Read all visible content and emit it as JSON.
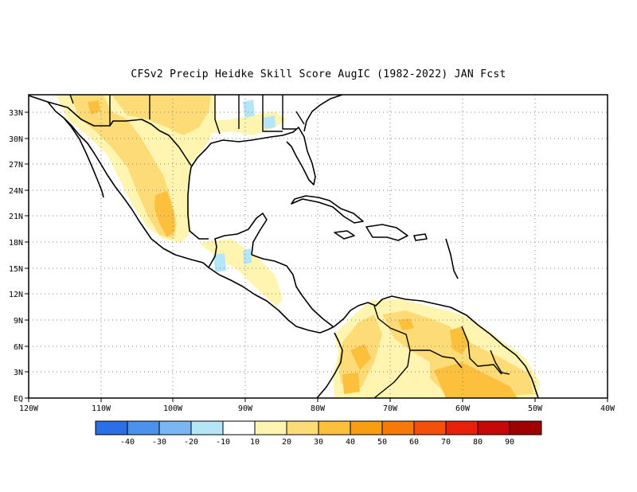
{
  "title": "CFSv2 Precip Heidke Skill Score AugIC (1982-2022) JAN Fcst",
  "lat_labels": [
    "33N",
    "30N",
    "27N",
    "24N",
    "21N",
    "18N",
    "15N",
    "12N",
    "9N",
    "6N",
    "3N",
    "EQ"
  ],
  "lon_labels": [
    "120W",
    "110W",
    "100W",
    "90W",
    "80W",
    "70W",
    "60W",
    "50W",
    "40W"
  ],
  "colorbar": {
    "colors": [
      "#2a6fe8",
      "#4a92ee",
      "#7ab6f4",
      "#b4e6f8",
      "#ffffff",
      "#fff4b0",
      "#fddc78",
      "#fcc03c",
      "#f89e10",
      "#f77a08",
      "#f5500a",
      "#e8200a",
      "#c80808",
      "#a00000"
    ],
    "labels": [
      "-40",
      "-30",
      "-20",
      "-10",
      "10",
      "20",
      "30",
      "40",
      "50",
      "60",
      "70",
      "80",
      "90"
    ]
  },
  "colors": {
    "yellow_light": "#fff4b0",
    "yellow": "#fddc78",
    "orange_light": "#fcc03c",
    "orange": "#f89e10",
    "cyan": "#b4e6f8"
  }
}
